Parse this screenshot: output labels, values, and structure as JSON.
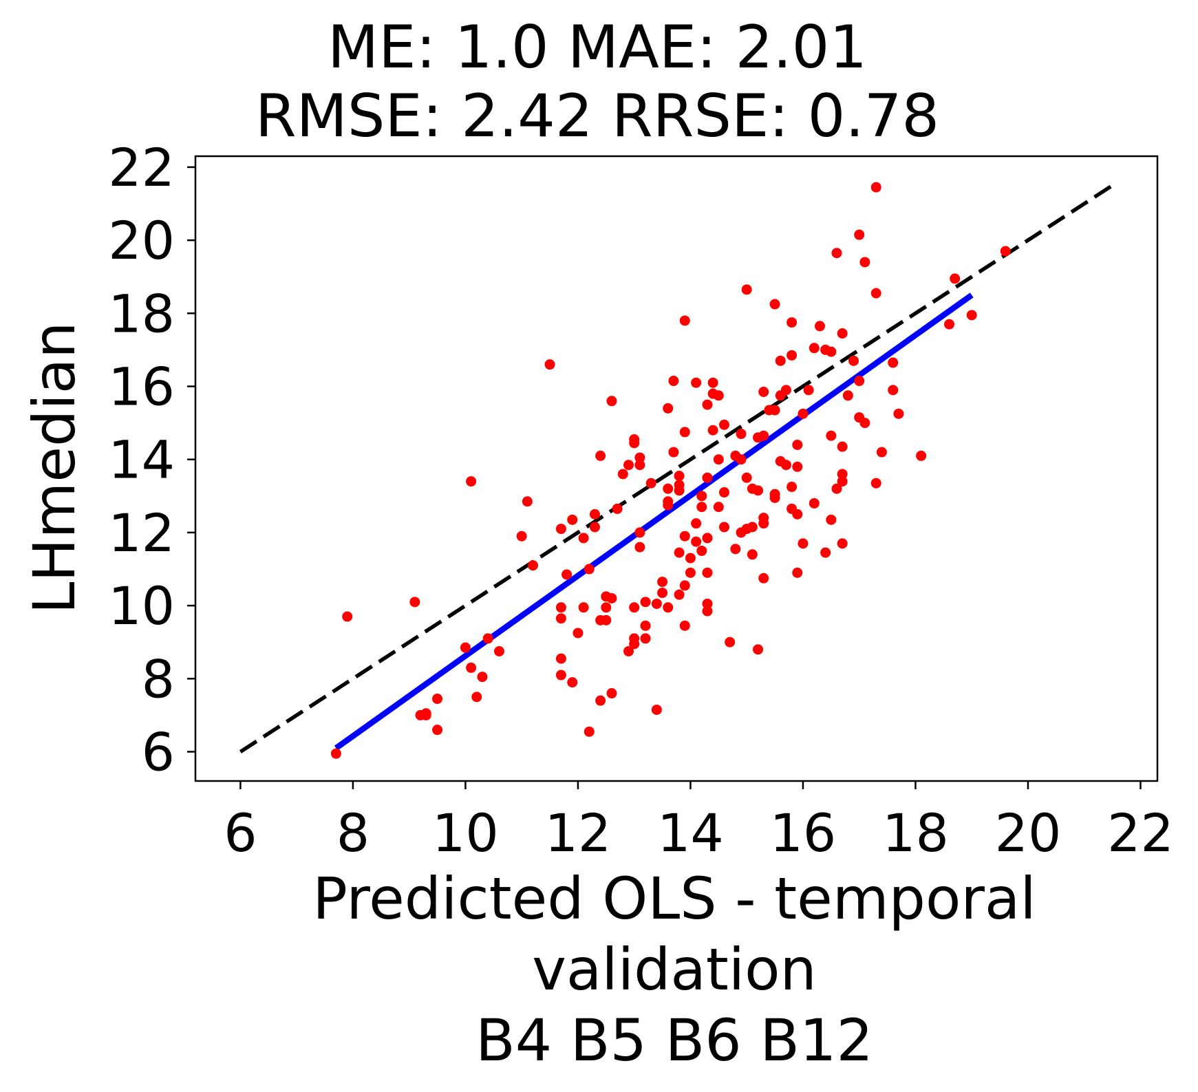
{
  "chart_data": {
    "type": "scatter",
    "title_lines": [
      "ME: 1.0 MAE: 2.01",
      "RMSE: 2.42 RRSE: 0.78"
    ],
    "xlabel_lines": [
      "Predicted OLS - temporal",
      "validation",
      "B4 B5 B6 B12"
    ],
    "ylabel": "LHmedian",
    "xlim": [
      5.2,
      22.3
    ],
    "ylim": [
      5.2,
      22.3
    ],
    "x_ticks": [
      6,
      8,
      10,
      12,
      14,
      16,
      18,
      20,
      22
    ],
    "y_ticks": [
      6,
      8,
      10,
      12,
      14,
      16,
      18,
      20,
      22
    ],
    "grid": false,
    "colors": {
      "points": "#ff0000",
      "fit_line": "#0000ff",
      "identity_line": "#000000"
    },
    "identity_line": {
      "x": [
        6.0,
        21.5
      ],
      "y": [
        6.0,
        21.5
      ],
      "style": "dashed"
    },
    "fit_line": {
      "x": [
        7.7,
        19.0
      ],
      "y": [
        6.1,
        18.5
      ],
      "style": "solid"
    },
    "points": [
      [
        7.7,
        5.95
      ],
      [
        7.9,
        9.7
      ],
      [
        9.1,
        10.1
      ],
      [
        9.2,
        7.0
      ],
      [
        9.3,
        7.0
      ],
      [
        9.3,
        7.05
      ],
      [
        9.5,
        7.45
      ],
      [
        9.5,
        6.6
      ],
      [
        10.0,
        8.85
      ],
      [
        10.1,
        8.3
      ],
      [
        10.1,
        13.4
      ],
      [
        10.2,
        7.5
      ],
      [
        10.3,
        8.05
      ],
      [
        10.4,
        9.1
      ],
      [
        10.6,
        8.75
      ],
      [
        11.0,
        11.9
      ],
      [
        11.1,
        12.85
      ],
      [
        11.2,
        11.1
      ],
      [
        11.5,
        16.6
      ],
      [
        11.7,
        12.1
      ],
      [
        11.7,
        9.95
      ],
      [
        11.7,
        9.65
      ],
      [
        11.7,
        8.55
      ],
      [
        11.7,
        8.1
      ],
      [
        11.8,
        10.85
      ],
      [
        11.9,
        12.35
      ],
      [
        11.9,
        7.9
      ],
      [
        12.0,
        9.25
      ],
      [
        12.1,
        9.95
      ],
      [
        12.1,
        11.85
      ],
      [
        12.2,
        6.55
      ],
      [
        12.2,
        11.0
      ],
      [
        12.3,
        12.5
      ],
      [
        12.3,
        12.15
      ],
      [
        12.4,
        14.1
      ],
      [
        12.4,
        9.6
      ],
      [
        12.4,
        7.4
      ],
      [
        12.5,
        10.25
      ],
      [
        12.5,
        9.95
      ],
      [
        12.5,
        9.6
      ],
      [
        12.6,
        15.6
      ],
      [
        12.6,
        10.2
      ],
      [
        12.6,
        7.6
      ],
      [
        12.7,
        12.65
      ],
      [
        12.8,
        13.6
      ],
      [
        12.9,
        13.85
      ],
      [
        12.9,
        8.75
      ],
      [
        13.0,
        9.95
      ],
      [
        13.0,
        8.95
      ],
      [
        13.0,
        9.1
      ],
      [
        13.0,
        14.55
      ],
      [
        13.0,
        14.45
      ],
      [
        13.1,
        13.85
      ],
      [
        13.1,
        14.05
      ],
      [
        13.1,
        12.0
      ],
      [
        13.1,
        11.6
      ],
      [
        13.2,
        10.1
      ],
      [
        13.2,
        9.45
      ],
      [
        13.2,
        9.1
      ],
      [
        13.3,
        13.35
      ],
      [
        13.4,
        10.05
      ],
      [
        13.4,
        7.15
      ],
      [
        13.5,
        10.65
      ],
      [
        13.5,
        10.35
      ],
      [
        13.6,
        15.4
      ],
      [
        13.6,
        13.2
      ],
      [
        13.6,
        12.85
      ],
      [
        13.6,
        12.75
      ],
      [
        13.6,
        9.95
      ],
      [
        13.7,
        14.2
      ],
      [
        13.7,
        16.15
      ],
      [
        13.8,
        13.55
      ],
      [
        13.8,
        13.3
      ],
      [
        13.8,
        13.15
      ],
      [
        13.8,
        11.45
      ],
      [
        13.8,
        10.3
      ],
      [
        13.9,
        17.8
      ],
      [
        13.9,
        14.75
      ],
      [
        13.9,
        11.9
      ],
      [
        13.9,
        10.55
      ],
      [
        13.9,
        9.45
      ],
      [
        14.0,
        11.3
      ],
      [
        14.0,
        10.9
      ],
      [
        14.1,
        16.1
      ],
      [
        14.1,
        12.25
      ],
      [
        14.1,
        11.75
      ],
      [
        14.2,
        12.7
      ],
      [
        14.2,
        11.5
      ],
      [
        14.2,
        13.0
      ],
      [
        14.3,
        13.5
      ],
      [
        14.3,
        10.9
      ],
      [
        14.3,
        10.05
      ],
      [
        14.3,
        9.85
      ],
      [
        14.3,
        11.85
      ],
      [
        14.3,
        15.5
      ],
      [
        14.4,
        15.8
      ],
      [
        14.4,
        16.1
      ],
      [
        14.4,
        14.8
      ],
      [
        14.5,
        14.0
      ],
      [
        14.5,
        15.75
      ],
      [
        14.5,
        12.7
      ],
      [
        14.6,
        14.95
      ],
      [
        14.6,
        12.15
      ],
      [
        14.6,
        13.1
      ],
      [
        14.7,
        9.0
      ],
      [
        14.8,
        14.1
      ],
      [
        14.8,
        11.55
      ],
      [
        14.9,
        12.0
      ],
      [
        14.9,
        14.0
      ],
      [
        14.9,
        14.7
      ],
      [
        15.0,
        18.65
      ],
      [
        15.0,
        13.5
      ],
      [
        15.0,
        12.1
      ],
      [
        15.1,
        13.2
      ],
      [
        15.1,
        12.15
      ],
      [
        15.1,
        11.4
      ],
      [
        15.2,
        8.8
      ],
      [
        15.2,
        14.6
      ],
      [
        15.2,
        13.15
      ],
      [
        15.3,
        15.85
      ],
      [
        15.3,
        12.4
      ],
      [
        15.3,
        12.25
      ],
      [
        15.3,
        10.75
      ],
      [
        15.3,
        14.65
      ],
      [
        15.4,
        15.35
      ],
      [
        15.5,
        18.25
      ],
      [
        15.5,
        15.35
      ],
      [
        15.5,
        13.05
      ],
      [
        15.5,
        12.95
      ],
      [
        15.6,
        16.7
      ],
      [
        15.6,
        15.75
      ],
      [
        15.6,
        13.95
      ],
      [
        15.7,
        15.9
      ],
      [
        15.7,
        13.85
      ],
      [
        15.8,
        12.65
      ],
      [
        15.8,
        17.75
      ],
      [
        15.8,
        16.85
      ],
      [
        15.8,
        13.25
      ],
      [
        15.9,
        12.5
      ],
      [
        15.9,
        10.9
      ],
      [
        15.9,
        14.4
      ],
      [
        15.9,
        13.8
      ],
      [
        16.0,
        15.25
      ],
      [
        16.0,
        11.7
      ],
      [
        16.1,
        15.9
      ],
      [
        16.2,
        17.05
      ],
      [
        16.2,
        12.8
      ],
      [
        16.3,
        17.65
      ],
      [
        16.4,
        17.0
      ],
      [
        16.4,
        11.45
      ],
      [
        16.5,
        16.95
      ],
      [
        16.5,
        14.65
      ],
      [
        16.5,
        12.35
      ],
      [
        16.6,
        19.65
      ],
      [
        16.6,
        13.2
      ],
      [
        16.7,
        13.4
      ],
      [
        16.7,
        11.7
      ],
      [
        16.7,
        14.35
      ],
      [
        16.7,
        13.6
      ],
      [
        16.7,
        17.45
      ],
      [
        16.8,
        15.75
      ],
      [
        16.9,
        16.7
      ],
      [
        17.0,
        20.15
      ],
      [
        17.0,
        16.15
      ],
      [
        17.0,
        15.15
      ],
      [
        17.1,
        19.4
      ],
      [
        17.1,
        15.0
      ],
      [
        17.3,
        21.45
      ],
      [
        17.3,
        18.55
      ],
      [
        17.3,
        13.35
      ],
      [
        17.4,
        14.2
      ],
      [
        17.6,
        16.65
      ],
      [
        17.6,
        15.9
      ],
      [
        17.7,
        15.25
      ],
      [
        18.1,
        14.1
      ],
      [
        18.6,
        17.7
      ],
      [
        18.7,
        18.95
      ],
      [
        19.0,
        17.95
      ],
      [
        19.6,
        19.7
      ]
    ]
  }
}
